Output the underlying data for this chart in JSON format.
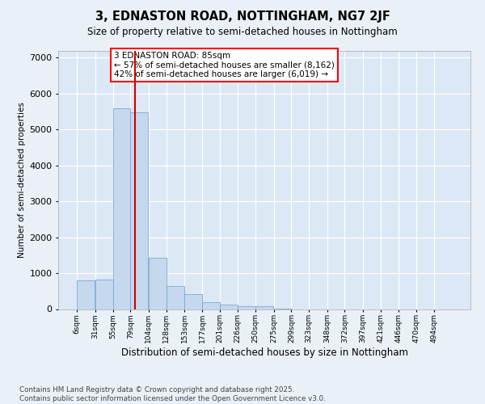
{
  "title": "3, EDNASTON ROAD, NOTTINGHAM, NG7 2JF",
  "subtitle": "Size of property relative to semi-detached houses in Nottingham",
  "xlabel": "Distribution of semi-detached houses by size in Nottingham",
  "ylabel": "Number of semi-detached properties",
  "bar_color": "#c5d8ee",
  "bar_edge_color": "#7aaad0",
  "bg_color": "#dce8f5",
  "fig_bg": "#eaf0f8",
  "grid_color": "#ffffff",
  "annotation_text": "3 EDNASTON ROAD: 85sqm\n← 57% of semi-detached houses are smaller (8,162)\n42% of semi-detached houses are larger (6,019) →",
  "vline_color": "#cc0000",
  "vline_x": 85,
  "bin_left_edges": [
    6,
    31,
    55,
    79,
    104,
    128,
    153,
    177,
    201,
    226,
    250,
    275,
    299,
    323,
    348,
    372,
    397,
    421,
    446,
    470,
    494
  ],
  "bin_width": 25,
  "values": [
    800,
    820,
    5600,
    5480,
    1430,
    640,
    410,
    190,
    115,
    90,
    70,
    5,
    0,
    0,
    0,
    0,
    0,
    0,
    0,
    0,
    0
  ],
  "categories": [
    "6sqm",
    "31sqm",
    "55sqm",
    "79sqm",
    "104sqm",
    "128sqm",
    "153sqm",
    "177sqm",
    "201sqm",
    "226sqm",
    "250sqm",
    "275sqm",
    "299sqm",
    "323sqm",
    "348sqm",
    "372sqm",
    "397sqm",
    "421sqm",
    "446sqm",
    "470sqm",
    "494sqm"
  ],
  "ylim": [
    0,
    7200
  ],
  "yticks": [
    0,
    1000,
    2000,
    3000,
    4000,
    5000,
    6000,
    7000
  ],
  "footer": "Contains HM Land Registry data © Crown copyright and database right 2025.\nContains public sector information licensed under the Open Government Licence v3.0."
}
